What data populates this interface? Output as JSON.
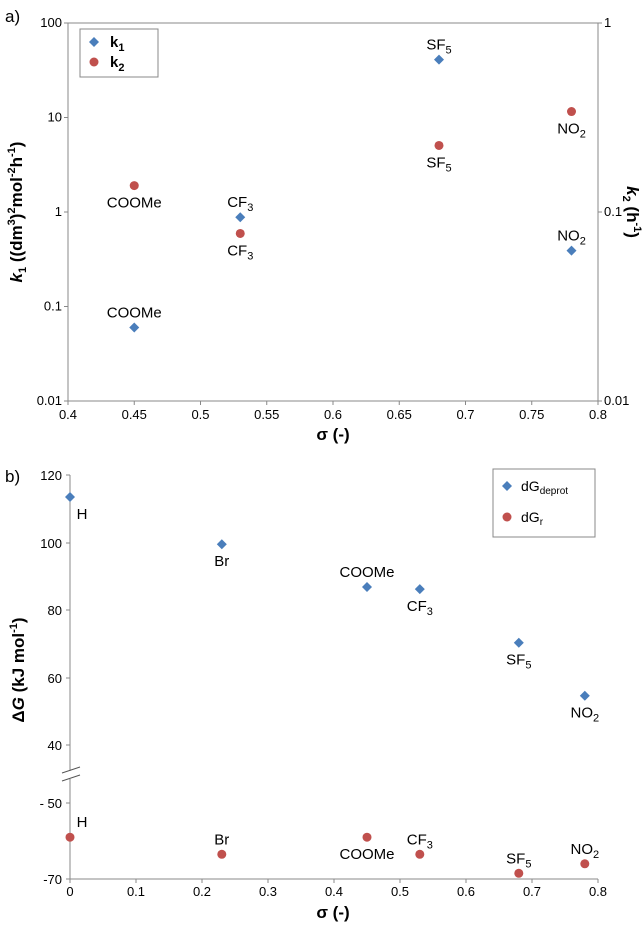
{
  "chart_data": [
    {
      "panel_label": "a)",
      "type": "scatter",
      "xlabel": "σ (-)",
      "ylabel": {
        "italic": "k",
        "sub1": "1",
        "rest": " ((dm",
        "sup1": "3",
        "rest2": ")",
        "sup2": "2",
        "rest3": "mol",
        "sup3": "-2",
        "rest4": "h",
        "sup4": "-1",
        "rest5": ")"
      },
      "y2label": {
        "italic": "k",
        "sub1": "2",
        "rest": " (h",
        "sup1": "-1",
        "rest2": ")"
      },
      "xlim": [
        0.4,
        0.8
      ],
      "ylim": [
        0.01,
        100
      ],
      "y2lim": [
        0.01,
        1
      ],
      "yscale": "log",
      "y2scale": "log",
      "x_ticks": [
        "0.4",
        "0.45",
        "0.5",
        "0.55",
        "0.6",
        "0.65",
        "0.7",
        "0.75",
        "0.8"
      ],
      "y_ticks": [
        "0.01",
        "0.1",
        "1",
        "10",
        "100"
      ],
      "y2_ticks": [
        "0.01",
        "0.1",
        "1"
      ],
      "legend_position": "top-left",
      "series": [
        {
          "name": "k1",
          "legend_main": "k",
          "legend_sub": "1",
          "marker": "diamond",
          "color": "#4a7ebb",
          "axis": "left",
          "points": [
            {
              "x": 0.45,
              "y": 0.06,
              "label": "COOMe",
              "label_pos": "above"
            },
            {
              "x": 0.53,
              "y": 0.88,
              "label": "CF",
              "label_sub": "3",
              "label_pos": "above"
            },
            {
              "x": 0.68,
              "y": 41,
              "label": "SF",
              "label_sub": "5",
              "label_pos": "above"
            },
            {
              "x": 0.78,
              "y": 0.39,
              "label": "NO",
              "label_sub": "2",
              "label_pos": "above"
            }
          ]
        },
        {
          "name": "k2",
          "legend_main": "k",
          "legend_sub": "2",
          "marker": "circle",
          "color": "#c0504d",
          "axis": "right",
          "points": [
            {
              "x": 0.45,
              "y": 0.138,
              "label": "COOMe",
              "label_pos": "below"
            },
            {
              "x": 0.53,
              "y": 0.077,
              "label": "CF",
              "label_sub": "3",
              "label_pos": "below"
            },
            {
              "x": 0.68,
              "y": 0.225,
              "label": "SF",
              "label_sub": "5",
              "label_pos": "below"
            },
            {
              "x": 0.78,
              "y": 0.34,
              "label": "NO",
              "label_sub": "2",
              "label_pos": "below"
            }
          ]
        }
      ]
    },
    {
      "panel_label": "b)",
      "type": "scatter",
      "xlabel": "σ (-)",
      "ylabel": {
        "pre": "Δ",
        "italic": "G",
        "rest": " (kJ mol",
        "sup1": "-1",
        "rest2": ")"
      },
      "xlim": [
        0,
        0.8
      ],
      "y_upper_range": [
        40,
        120
      ],
      "y_lower_range": [
        -70,
        -50
      ],
      "axis_break": true,
      "x_ticks": [
        "0",
        "0.1",
        "0.2",
        "0.3",
        "0.4",
        "0.5",
        "0.6",
        "0.7",
        "0.8"
      ],
      "y_upper_ticks": [
        "40",
        "60",
        "80",
        "100",
        "120"
      ],
      "y_lower_ticks": [
        "- 50",
        "-70"
      ],
      "legend_position": "top-right",
      "series": [
        {
          "name": "dGdeprot",
          "legend_main": "dG",
          "legend_sub": "deprot",
          "marker": "diamond",
          "color": "#4a7ebb",
          "points": [
            {
              "x": 0,
              "y": 113.5,
              "label": "H",
              "label_pos": "below"
            },
            {
              "x": 0.23,
              "y": 99.5,
              "label": "Br",
              "label_pos": "below"
            },
            {
              "x": 0.45,
              "y": 86.8,
              "label": "COOMe",
              "label_pos": "above"
            },
            {
              "x": 0.53,
              "y": 86.2,
              "label": "CF",
              "label_sub": "3",
              "label_pos": "below"
            },
            {
              "x": 0.68,
              "y": 70.3,
              "label": "SF",
              "label_sub": "5",
              "label_pos": "below"
            },
            {
              "x": 0.78,
              "y": 54.6,
              "label": "NO",
              "label_sub": "2",
              "label_pos": "below"
            }
          ]
        },
        {
          "name": "dGr",
          "legend_main": "dG",
          "legend_sub": "r",
          "marker": "circle",
          "color": "#c0504d",
          "points": [
            {
              "x": 0,
              "y": -59,
              "label": "H",
              "label_pos": "above"
            },
            {
              "x": 0.23,
              "y": -63.5,
              "label": "Br",
              "label_pos": "above"
            },
            {
              "x": 0.45,
              "y": -59,
              "label": "COOMe",
              "label_pos": "below"
            },
            {
              "x": 0.53,
              "y": -63.5,
              "label": "CF",
              "label_sub": "3",
              "label_pos": "above"
            },
            {
              "x": 0.68,
              "y": -68.5,
              "label": "SF",
              "label_sub": "5",
              "label_pos": "above"
            },
            {
              "x": 0.78,
              "y": -66,
              "label": "NO",
              "label_sub": "2",
              "label_pos": "above"
            }
          ]
        }
      ]
    }
  ]
}
